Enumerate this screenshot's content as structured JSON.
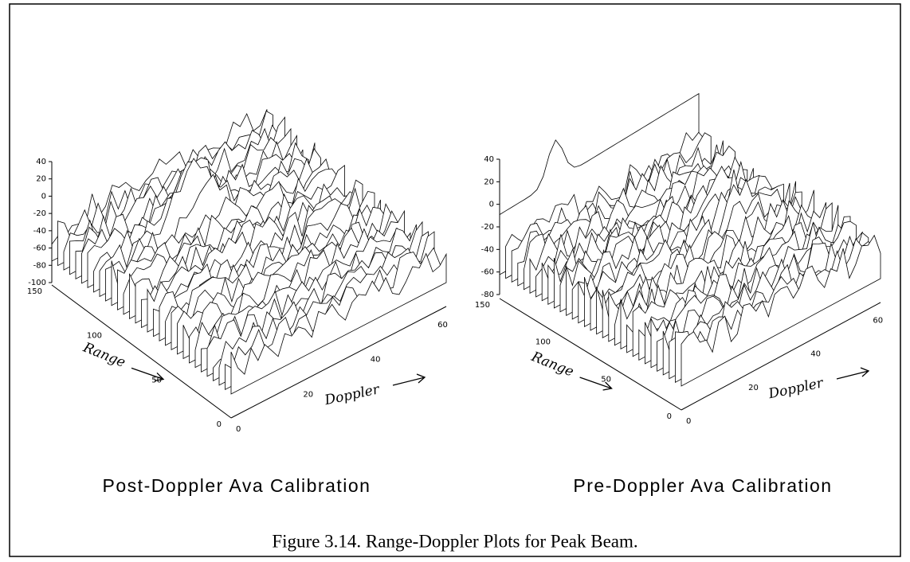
{
  "figure": {
    "panels": [
      {
        "title": "Post-Doppler Ava Calibration",
        "z_ticks": [
          40,
          20,
          0,
          -20,
          -40,
          -60,
          -80,
          -100
        ],
        "range_ticks": [
          150,
          100,
          50,
          0
        ],
        "doppler_ticks": [
          0,
          20,
          40,
          60
        ],
        "range_label": "Range",
        "doppler_label": "Doppler"
      },
      {
        "title": "Pre-Doppler Ava Calibration",
        "z_ticks": [
          40,
          20,
          0,
          -20,
          -40,
          -60,
          -80
        ],
        "range_ticks": [
          150,
          100,
          50,
          0
        ],
        "doppler_ticks": [
          0,
          20,
          40,
          60
        ],
        "range_label": "Range",
        "doppler_label": "Doppler"
      }
    ],
    "caption": "Figure 3.14.  Range-Doppler Plots for Peak Beam."
  }
}
